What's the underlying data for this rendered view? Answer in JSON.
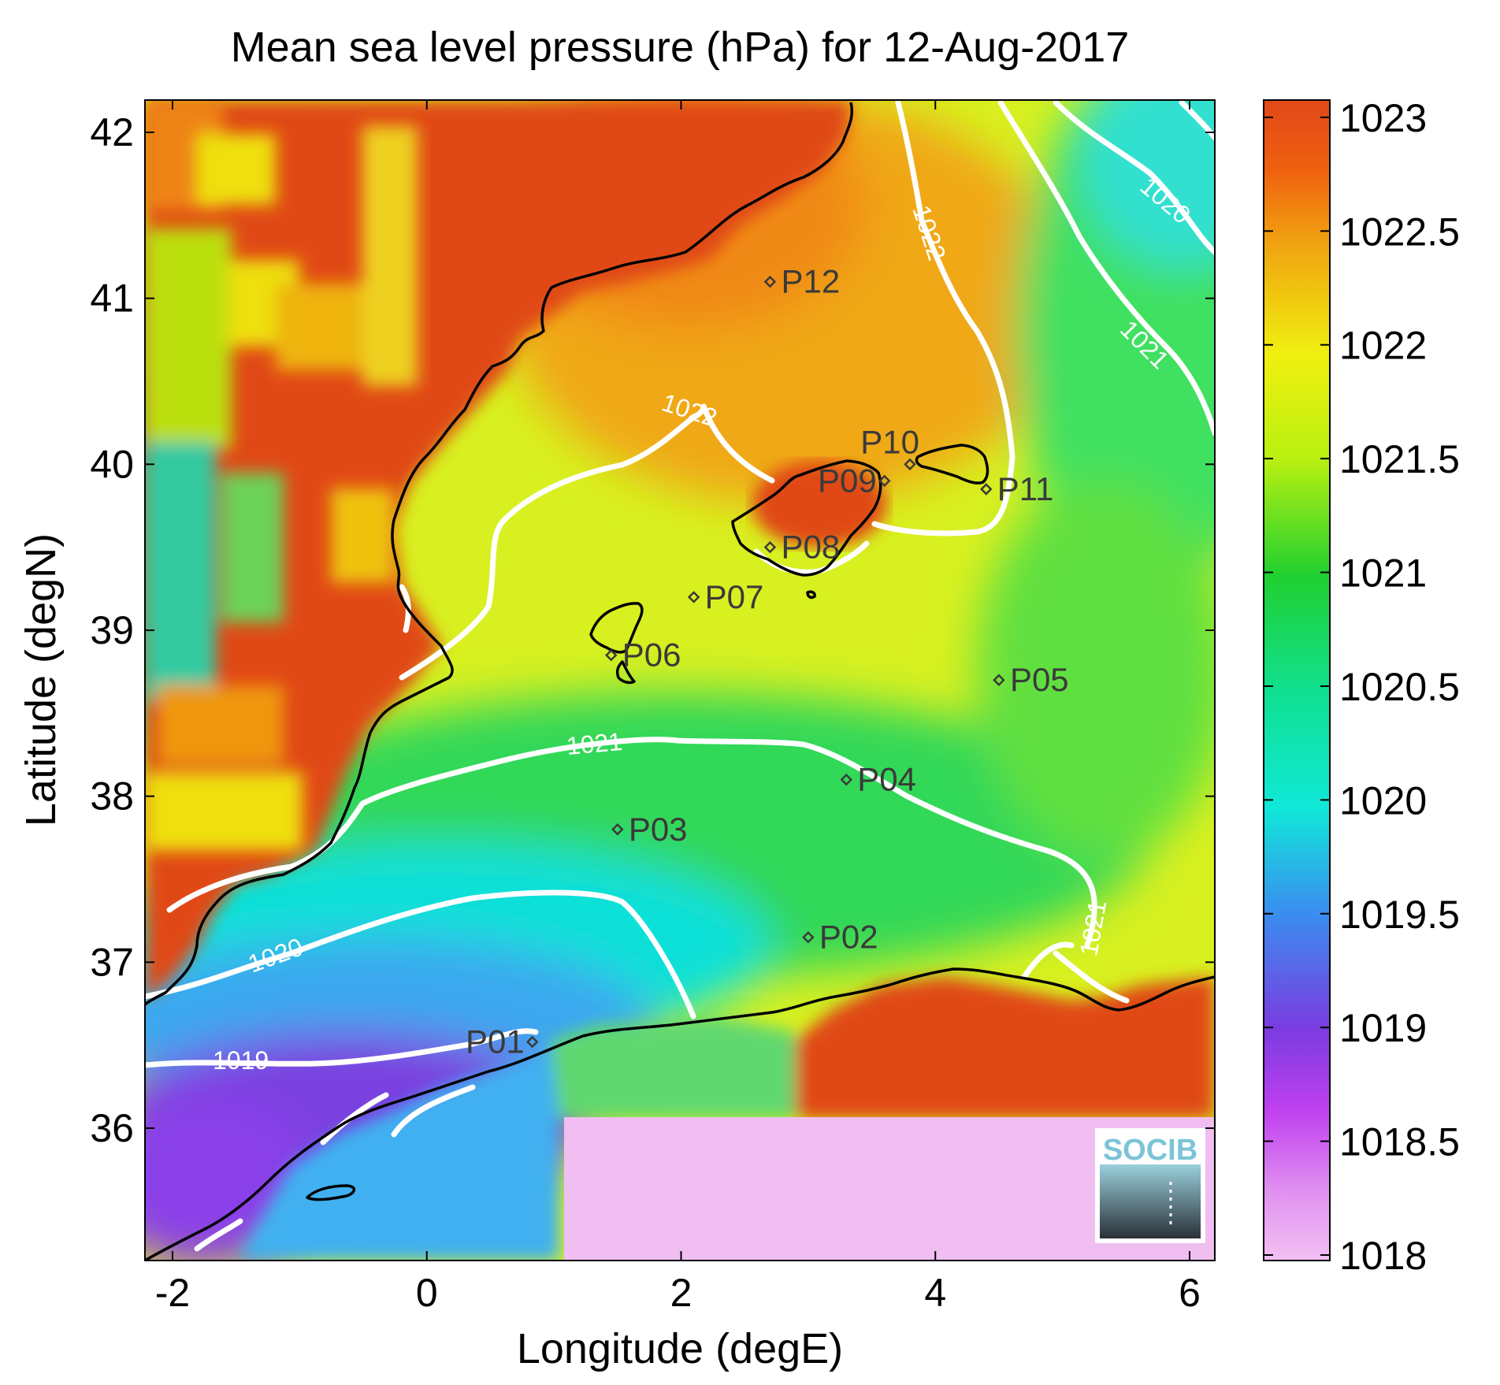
{
  "title": "Mean sea level pressure (hPa) for 12-Aug-2017",
  "xlabel": "Longitude (degE)",
  "ylabel": "Latitude (degN)",
  "logo_text": "SOCIB",
  "chart_data": {
    "type": "heatmap",
    "title": "Mean sea level pressure (hPa) for 12-Aug-2017",
    "xlabel": "Longitude (degE)",
    "ylabel": "Latitude (degN)",
    "xlim": [
      -2.2,
      6.1
    ],
    "ylim": [
      35.2,
      42.2
    ],
    "x_ticks": [
      -2,
      0,
      2,
      4,
      6
    ],
    "x_tick_labels": [
      "-2",
      "0",
      "2",
      "4",
      "6"
    ],
    "y_ticks": [
      36,
      37,
      38,
      39,
      40,
      41,
      42
    ],
    "y_tick_labels": [
      "36",
      "37",
      "38",
      "39",
      "40",
      "41",
      "42"
    ],
    "colorbar": {
      "min": 1018,
      "max": 1023.1,
      "ticks": [
        1018,
        1018.5,
        1019,
        1019.5,
        1020,
        1020.5,
        1021,
        1021.5,
        1022,
        1022.5,
        1023
      ],
      "tick_labels": [
        "1018",
        "1018.5",
        "1019",
        "1019.5",
        "1020",
        "1020.5",
        "1021",
        "1021.5",
        "1022",
        "1022.5",
        "1023"
      ],
      "colors": [
        "#f0b8f0",
        "#c040f0",
        "#7a3ce0",
        "#3a8ef0",
        "#10e8d8",
        "#10e090",
        "#20d030",
        "#b8f010",
        "#f0f010",
        "#f0a010",
        "#e04818"
      ]
    },
    "contours": [
      {
        "level": 1019,
        "label": "1019"
      },
      {
        "level": 1020,
        "label": "1020"
      },
      {
        "level": 1021,
        "label": "1021"
      },
      {
        "level": 1022,
        "label": "1022"
      }
    ],
    "stations": [
      {
        "name": "P01",
        "lon": 0.83,
        "lat": 36.52
      },
      {
        "name": "P02",
        "lon": 3.0,
        "lat": 37.15
      },
      {
        "name": "P03",
        "lon": 1.5,
        "lat": 37.8
      },
      {
        "name": "P04",
        "lon": 3.3,
        "lat": 38.1
      },
      {
        "name": "P05",
        "lon": 4.5,
        "lat": 38.7
      },
      {
        "name": "P06",
        "lon": 1.45,
        "lat": 38.85
      },
      {
        "name": "P07",
        "lon": 2.1,
        "lat": 39.2
      },
      {
        "name": "P08",
        "lon": 2.7,
        "lat": 39.5
      },
      {
        "name": "P09",
        "lon": 3.6,
        "lat": 39.9
      },
      {
        "name": "P10",
        "lon": 3.8,
        "lat": 40.0
      },
      {
        "name": "P11",
        "lon": 4.4,
        "lat": 39.85
      },
      {
        "name": "P12",
        "lon": 2.7,
        "lat": 41.1
      }
    ]
  }
}
